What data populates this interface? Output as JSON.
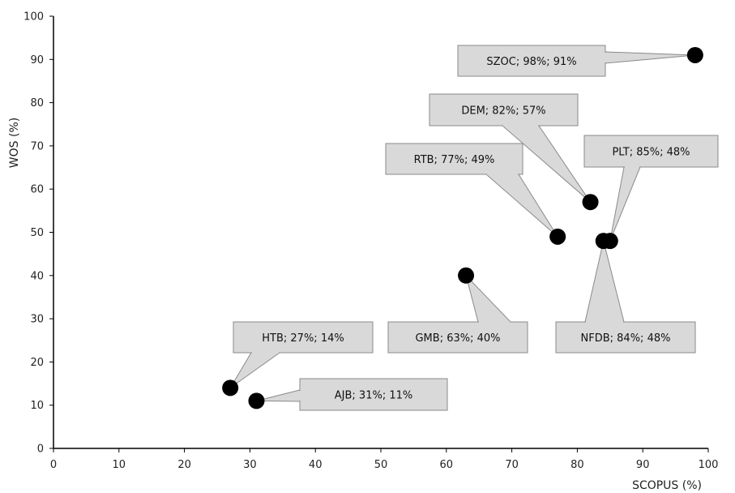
{
  "chart_data": {
    "type": "scatter",
    "xlabel": "SCOPUS (%)",
    "ylabel": "WOS (%)",
    "xlim": [
      0,
      100
    ],
    "ylim": [
      0,
      100
    ],
    "xticks": [
      0,
      10,
      20,
      30,
      40,
      50,
      60,
      70,
      80,
      90,
      100
    ],
    "yticks": [
      0,
      10,
      20,
      30,
      40,
      50,
      60,
      70,
      80,
      90,
      100
    ],
    "grid": false,
    "marker_color": "#000000",
    "callout_fill": "#d9d9d9",
    "callout_stroke": "#8a8a8a",
    "points": [
      {
        "x": 98,
        "y": 91,
        "label": "SZOC; 98%; 91%"
      },
      {
        "x": 82,
        "y": 57,
        "label": "DEM; 82%; 57%"
      },
      {
        "x": 85,
        "y": 48,
        "label": "PLT; 85%; 48%"
      },
      {
        "x": 77,
        "y": 49,
        "label": "RTB; 77%; 49%"
      },
      {
        "x": 63,
        "y": 40,
        "label": "GMB; 63%; 40%"
      },
      {
        "x": 84,
        "y": 48,
        "label": "NFDB; 84%; 48%"
      },
      {
        "x": 27,
        "y": 14,
        "label": "HTB; 27%; 14%"
      },
      {
        "x": 31,
        "y": 11,
        "label": "AJB; 31%; 11%"
      }
    ]
  }
}
